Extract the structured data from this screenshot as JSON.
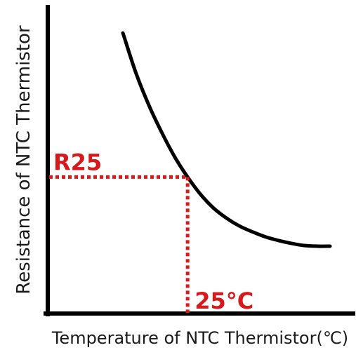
{
  "chart_data": {
    "type": "line",
    "xlabel": "Temperature of NTC Thermistor(℃)",
    "ylabel": "Resistance of NTC Thermistor",
    "x_ticks": [],
    "y_ticks": [],
    "grid": false,
    "series": [
      {
        "x": [
          0,
          5,
          10,
          15,
          20,
          25,
          30,
          35,
          40,
          45,
          50,
          55,
          60,
          65,
          70,
          75,
          80
        ],
        "y": [
          3.0,
          2.45,
          2.0,
          1.62,
          1.28,
          1.0,
          0.76,
          0.57,
          0.43,
          0.32,
          0.24,
          0.17,
          0.12,
          0.08,
          0.05,
          0.04,
          0.04
        ]
      }
    ],
    "annotations": [
      {
        "label": "R25",
        "axis": "y",
        "value": 1.0
      },
      {
        "label": "25°C",
        "axis": "x",
        "value": 25
      }
    ],
    "colors": {
      "curve": "#000000",
      "axes": "#000000",
      "marker": "#d7191c"
    }
  }
}
